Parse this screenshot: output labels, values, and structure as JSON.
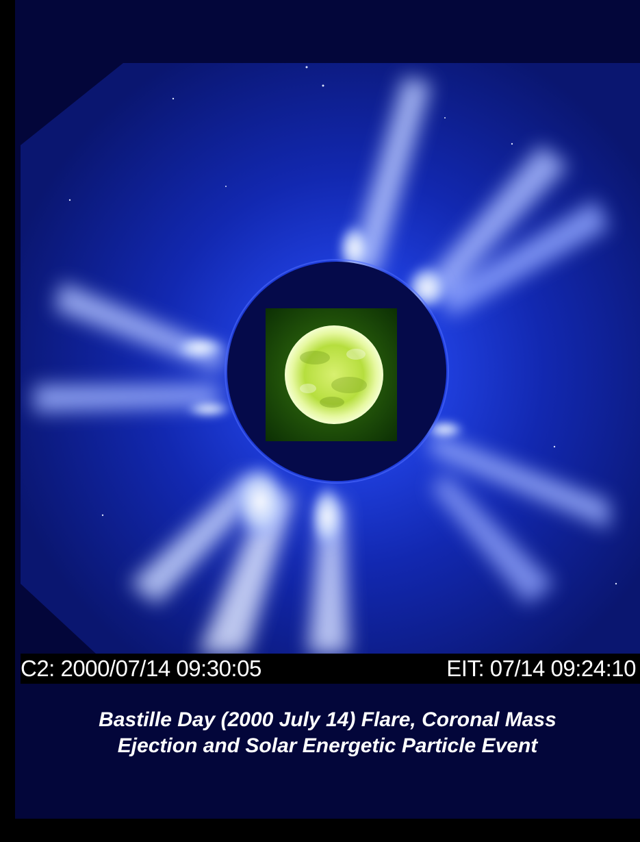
{
  "image": {
    "subject": "corona-with-eit-inset",
    "colors": {
      "background": "#03063a",
      "corona_blue": "#1a2fd0",
      "streamer_white": "#eef4ff",
      "occulter": "#050a4a",
      "sun_green": "#b8e040"
    }
  },
  "timestamps": {
    "c2": "C2: 2000/07/14 09:30:05",
    "eit": "EIT: 07/14 09:24:10"
  },
  "caption": {
    "line1": "Bastille Day (2000 July 14) Flare, Coronal Mass",
    "line2": "Ejection and Solar Energetic Particle Event"
  }
}
